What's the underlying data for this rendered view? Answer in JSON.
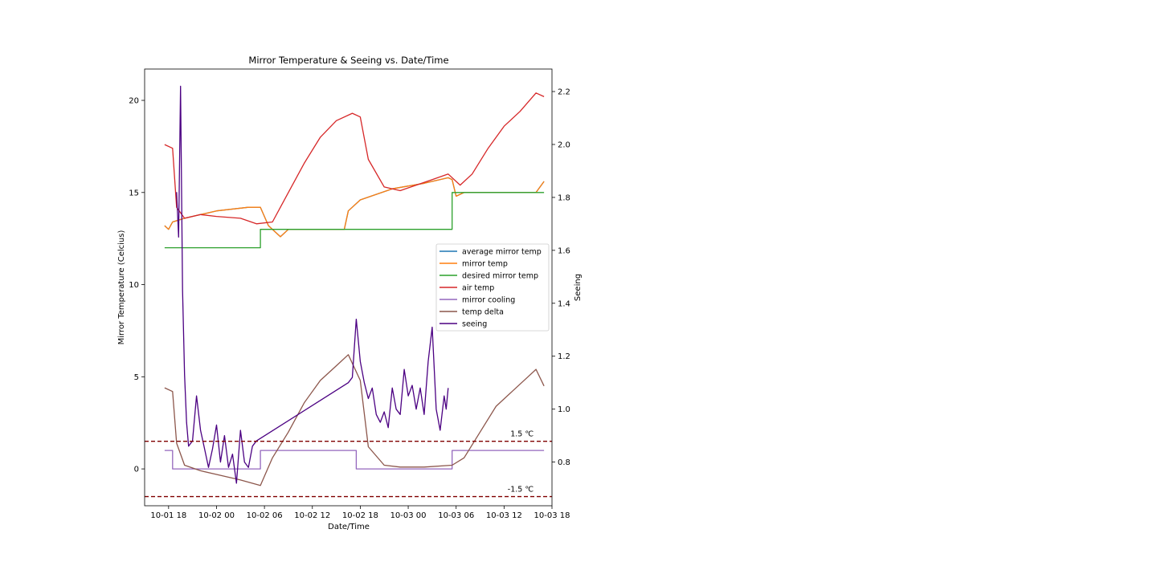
{
  "chart_data": {
    "type": "line",
    "title": "Mirror Temperature & Seeing vs. Date/Time",
    "xlabel": "Date/Time",
    "ylabel": "Mirror Temperature (Celcius)",
    "y2label": "Seeing",
    "x_ticks": [
      "10-01 18",
      "10-02 00",
      "10-02 06",
      "10-02 12",
      "10-02 18",
      "10-03 00",
      "10-03 06",
      "10-03 12",
      "10-03 18"
    ],
    "xlim": [
      "2021-10-01 15:00",
      "2021-10-03 18:00"
    ],
    "ylim": [
      -2.0,
      21.7
    ],
    "y_ticks": [
      0,
      5,
      10,
      15,
      20
    ],
    "y2lim": [
      0.635,
      2.285
    ],
    "y2_ticks": [
      0.8,
      1.0,
      1.2,
      1.4,
      1.6,
      1.8,
      2.0,
      2.2
    ],
    "grid": false,
    "legend_position": "center-right",
    "series": [
      {
        "name": "average mirror temp",
        "color": "#1f77b4",
        "axis": "left",
        "points": [
          [
            "2021-10-01 17:30",
            13.2
          ],
          [
            "2021-10-01 18:00",
            13.0
          ],
          [
            "2021-10-01 18:30",
            13.4
          ],
          [
            "2021-10-01 20:00",
            13.6
          ],
          [
            "2021-10-01 22:00",
            13.8
          ],
          [
            "2021-10-02 00:00",
            14.0
          ],
          [
            "2021-10-02 04:00",
            14.2
          ],
          [
            "2021-10-02 05:30",
            14.2
          ],
          [
            "2021-10-02 06:30",
            13.2
          ],
          [
            "2021-10-02 08:00",
            12.6
          ],
          [
            "2021-10-02 09:00",
            13.0
          ],
          [
            "2021-10-02 16:00",
            13.0
          ],
          [
            "2021-10-02 16:30",
            14.0
          ],
          [
            "2021-10-02 18:00",
            14.6
          ],
          [
            "2021-10-02 22:00",
            15.2
          ],
          [
            "2021-10-03 02:00",
            15.5
          ],
          [
            "2021-10-03 05:00",
            15.8
          ],
          [
            "2021-10-03 05:30",
            15.7
          ],
          [
            "2021-10-03 06:00",
            14.8
          ],
          [
            "2021-10-03 07:00",
            15.0
          ],
          [
            "2021-10-03 16:00",
            15.0
          ],
          [
            "2021-10-03 17:00",
            15.6
          ]
        ]
      },
      {
        "name": "mirror temp",
        "color": "#ff7f0e",
        "axis": "left",
        "points": [
          [
            "2021-10-01 17:30",
            13.2
          ],
          [
            "2021-10-01 18:00",
            13.0
          ],
          [
            "2021-10-01 18:30",
            13.4
          ],
          [
            "2021-10-01 20:00",
            13.6
          ],
          [
            "2021-10-01 22:00",
            13.8
          ],
          [
            "2021-10-02 00:00",
            14.0
          ],
          [
            "2021-10-02 04:00",
            14.2
          ],
          [
            "2021-10-02 05:30",
            14.2
          ],
          [
            "2021-10-02 06:30",
            13.2
          ],
          [
            "2021-10-02 08:00",
            12.6
          ],
          [
            "2021-10-02 09:00",
            13.0
          ],
          [
            "2021-10-02 16:00",
            13.0
          ],
          [
            "2021-10-02 16:30",
            14.0
          ],
          [
            "2021-10-02 18:00",
            14.6
          ],
          [
            "2021-10-02 22:00",
            15.2
          ],
          [
            "2021-10-03 02:00",
            15.5
          ],
          [
            "2021-10-03 05:00",
            15.8
          ],
          [
            "2021-10-03 05:30",
            15.7
          ],
          [
            "2021-10-03 06:00",
            14.8
          ],
          [
            "2021-10-03 07:00",
            15.0
          ],
          [
            "2021-10-03 16:00",
            15.0
          ],
          [
            "2021-10-03 17:00",
            15.6
          ]
        ]
      },
      {
        "name": "desired mirror temp",
        "color": "#2ca02c",
        "axis": "left",
        "step": true,
        "points": [
          [
            "2021-10-01 17:30",
            12.0
          ],
          [
            "2021-10-02 05:30",
            12.0
          ],
          [
            "2021-10-02 05:30",
            13.0
          ],
          [
            "2021-10-03 05:30",
            13.0
          ],
          [
            "2021-10-03 05:30",
            15.0
          ],
          [
            "2021-10-03 17:00",
            15.0
          ]
        ]
      },
      {
        "name": "air temp",
        "color": "#d62728",
        "axis": "left",
        "points": [
          [
            "2021-10-01 17:30",
            17.6
          ],
          [
            "2021-10-01 18:30",
            17.4
          ],
          [
            "2021-10-01 19:00",
            14.2
          ],
          [
            "2021-10-01 20:00",
            13.6
          ],
          [
            "2021-10-01 22:00",
            13.8
          ],
          [
            "2021-10-02 00:00",
            13.7
          ],
          [
            "2021-10-02 03:00",
            13.6
          ],
          [
            "2021-10-02 05:00",
            13.3
          ],
          [
            "2021-10-02 07:00",
            13.4
          ],
          [
            "2021-10-02 09:00",
            15.0
          ],
          [
            "2021-10-02 11:00",
            16.6
          ],
          [
            "2021-10-02 13:00",
            18.0
          ],
          [
            "2021-10-02 15:00",
            18.9
          ],
          [
            "2021-10-02 17:00",
            19.3
          ],
          [
            "2021-10-02 18:00",
            19.1
          ],
          [
            "2021-10-02 19:00",
            16.8
          ],
          [
            "2021-10-02 21:00",
            15.3
          ],
          [
            "2021-10-02 23:00",
            15.1
          ],
          [
            "2021-10-03 01:00",
            15.4
          ],
          [
            "2021-10-03 03:00",
            15.7
          ],
          [
            "2021-10-03 05:00",
            16.0
          ],
          [
            "2021-10-03 06:30",
            15.4
          ],
          [
            "2021-10-03 08:00",
            16.0
          ],
          [
            "2021-10-03 10:00",
            17.4
          ],
          [
            "2021-10-03 12:00",
            18.6
          ],
          [
            "2021-10-03 14:00",
            19.4
          ],
          [
            "2021-10-03 16:00",
            20.4
          ],
          [
            "2021-10-03 17:00",
            20.2
          ]
        ]
      },
      {
        "name": "mirror cooling",
        "color": "#9467bd",
        "axis": "left",
        "step": true,
        "points": [
          [
            "2021-10-01 17:30",
            1.0
          ],
          [
            "2021-10-01 18:30",
            1.0
          ],
          [
            "2021-10-01 18:30",
            0.0
          ],
          [
            "2021-10-02 05:30",
            0.0
          ],
          [
            "2021-10-02 05:30",
            1.0
          ],
          [
            "2021-10-02 17:30",
            1.0
          ],
          [
            "2021-10-02 17:30",
            0.0
          ],
          [
            "2021-10-03 05:30",
            0.0
          ],
          [
            "2021-10-03 05:30",
            1.0
          ],
          [
            "2021-10-03 17:00",
            1.0
          ]
        ]
      },
      {
        "name": "temp delta",
        "color": "#8c564b",
        "axis": "left",
        "points": [
          [
            "2021-10-01 17:30",
            4.4
          ],
          [
            "2021-10-01 18:30",
            4.2
          ],
          [
            "2021-10-01 19:00",
            1.4
          ],
          [
            "2021-10-01 20:00",
            0.2
          ],
          [
            "2021-10-01 22:00",
            -0.1
          ],
          [
            "2021-10-02 00:00",
            -0.3
          ],
          [
            "2021-10-02 03:00",
            -0.6
          ],
          [
            "2021-10-02 05:30",
            -0.9
          ],
          [
            "2021-10-02 07:00",
            0.6
          ],
          [
            "2021-10-02 09:00",
            2.0
          ],
          [
            "2021-10-02 11:00",
            3.6
          ],
          [
            "2021-10-02 13:00",
            4.8
          ],
          [
            "2021-10-02 15:00",
            5.6
          ],
          [
            "2021-10-02 16:30",
            6.2
          ],
          [
            "2021-10-02 18:00",
            4.8
          ],
          [
            "2021-10-02 19:00",
            1.2
          ],
          [
            "2021-10-02 21:00",
            0.2
          ],
          [
            "2021-10-02 23:00",
            0.1
          ],
          [
            "2021-10-03 02:00",
            0.1
          ],
          [
            "2021-10-03 05:30",
            0.2
          ],
          [
            "2021-10-03 07:00",
            0.6
          ],
          [
            "2021-10-03 09:00",
            2.0
          ],
          [
            "2021-10-03 11:00",
            3.4
          ],
          [
            "2021-10-03 13:00",
            4.2
          ],
          [
            "2021-10-03 15:00",
            5.0
          ],
          [
            "2021-10-03 16:00",
            5.4
          ],
          [
            "2021-10-03 17:00",
            4.5
          ]
        ]
      },
      {
        "name": "seeing",
        "color": "#4b0082",
        "axis": "right",
        "points": [
          [
            "2021-10-01 19:00",
            1.82
          ],
          [
            "2021-10-01 19:15",
            1.65
          ],
          [
            "2021-10-01 19:30",
            2.22
          ],
          [
            "2021-10-01 19:45",
            1.45
          ],
          [
            "2021-10-01 20:00",
            1.13
          ],
          [
            "2021-10-01 20:15",
            0.95
          ],
          [
            "2021-10-01 20:30",
            0.86
          ],
          [
            "2021-10-01 21:00",
            0.88
          ],
          [
            "2021-10-01 21:30",
            1.05
          ],
          [
            "2021-10-01 22:00",
            0.92
          ],
          [
            "2021-10-01 22:30",
            0.85
          ],
          [
            "2021-10-01 23:00",
            0.78
          ],
          [
            "2021-10-01 23:30",
            0.85
          ],
          [
            "2021-10-02 00:00",
            0.94
          ],
          [
            "2021-10-02 00:30",
            0.8
          ],
          [
            "2021-10-02 01:00",
            0.9
          ],
          [
            "2021-10-02 01:30",
            0.78
          ],
          [
            "2021-10-02 02:00",
            0.83
          ],
          [
            "2021-10-02 02:30",
            0.72
          ],
          [
            "2021-10-02 03:00",
            0.92
          ],
          [
            "2021-10-02 03:30",
            0.8
          ],
          [
            "2021-10-02 04:00",
            0.78
          ],
          [
            "2021-10-02 04:30",
            0.86
          ],
          [
            "2021-10-02 05:00",
            0.88
          ],
          [
            "2021-10-02 16:30",
            1.1
          ],
          [
            "2021-10-02 17:00",
            1.12
          ],
          [
            "2021-10-02 17:30",
            1.34
          ],
          [
            "2021-10-02 18:00",
            1.18
          ],
          [
            "2021-10-02 18:30",
            1.1
          ],
          [
            "2021-10-02 19:00",
            1.04
          ],
          [
            "2021-10-02 19:30",
            1.08
          ],
          [
            "2021-10-02 20:00",
            0.98
          ],
          [
            "2021-10-02 20:30",
            0.95
          ],
          [
            "2021-10-02 21:00",
            0.99
          ],
          [
            "2021-10-02 21:30",
            0.93
          ],
          [
            "2021-10-02 22:00",
            1.08
          ],
          [
            "2021-10-02 22:30",
            1.0
          ],
          [
            "2021-10-02 23:00",
            0.98
          ],
          [
            "2021-10-02 23:30",
            1.15
          ],
          [
            "2021-10-03 00:00",
            1.05
          ],
          [
            "2021-10-03 00:30",
            1.09
          ],
          [
            "2021-10-03 01:00",
            1.0
          ],
          [
            "2021-10-03 01:30",
            1.08
          ],
          [
            "2021-10-03 02:00",
            0.98
          ],
          [
            "2021-10-03 02:30",
            1.18
          ],
          [
            "2021-10-03 03:00",
            1.31
          ],
          [
            "2021-10-03 03:30",
            1.0
          ],
          [
            "2021-10-03 04:00",
            0.92
          ],
          [
            "2021-10-03 04:30",
            1.05
          ],
          [
            "2021-10-03 04:45",
            1.0
          ],
          [
            "2021-10-03 05:00",
            1.08
          ]
        ]
      }
    ],
    "reference_lines": [
      {
        "value": 1.5,
        "label": "1.5 ℃",
        "style": "dashed",
        "color": "#800000"
      },
      {
        "value": -1.5,
        "label": "-1.5 ℃",
        "style": "dashed",
        "color": "#800000"
      }
    ]
  }
}
